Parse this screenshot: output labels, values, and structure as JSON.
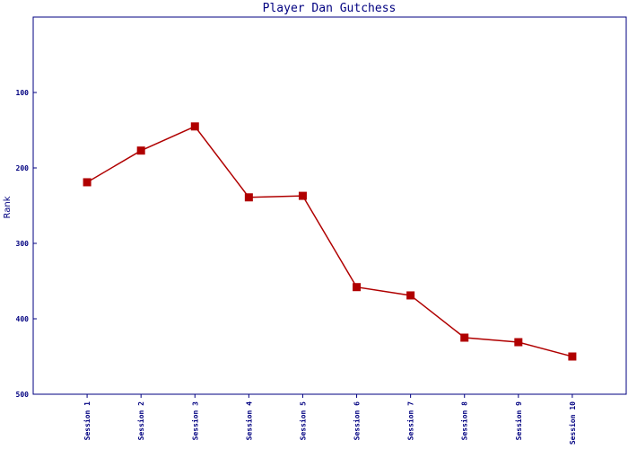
{
  "chart_data": {
    "type": "line",
    "title": "Player Dan Gutchess",
    "y_label": "Rank",
    "categories": [
      "Session 1",
      "Session 2",
      "Session 3",
      "Session 4",
      "Session 5",
      "Session 6",
      "Session 7",
      "Session 8",
      "Session 9",
      "Session 10"
    ],
    "series": [
      {
        "name": "Rank",
        "color": "#b00000",
        "values": [
          219,
          177,
          145,
          239,
          237,
          358,
          369,
          425,
          431,
          450
        ]
      }
    ],
    "ylim": [
      500,
      0
    ],
    "yticks": [
      100,
      200,
      300,
      400,
      500
    ]
  }
}
